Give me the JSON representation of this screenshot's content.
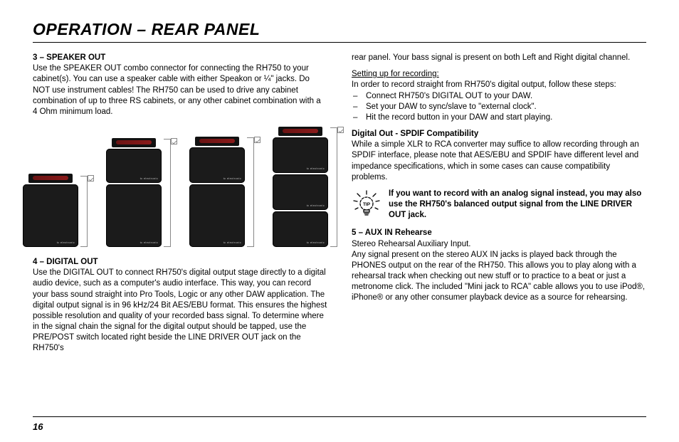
{
  "title": "OPERATION – REAR PANEL",
  "page_number": "16",
  "left": {
    "s3_head": "3 – SPEAKER OUT",
    "s3_body": "Use the SPEAKER OUT combo connector for connecting the RH750 to your cabinet(s). You can use a speaker cable with either Speakon or ¼\" jacks. Do NOT use instrument cables! The RH750 can be used to drive any cabinet combination of up to three RS cabinets, or any other cabinet combination with a 4 Ohm minimum load.",
    "s4_head": "4 – DIGITAL OUT",
    "s4_body": "Use the DIGITAL OUT to connect RH750's digital output stage directly to a digital audio device, such as a computer's audio interface. This way, you can record your bass sound straight into Pro Tools, Logic or any other DAW application. The digital output signal is in 96 kHz/24 Bit AES/EBU format. This ensures the highest possible resolution and quality of your recorded bass signal. To determine where in the signal chain the signal for the digital output should be tapped, use the PRE/POST switch located right beside the LINE DRIVER OUT jack on the RH750's",
    "diagram": {
      "brand": "tc electronic",
      "stacks": [
        {
          "amp": true,
          "cabs": [
            "sz2"
          ],
          "tick_h": 100
        },
        {
          "amp": true,
          "cabs": [
            "sz-top",
            "sz2"
          ],
          "tick_h": 152
        },
        {
          "amp": true,
          "cabs": [
            "sz1",
            "sz2"
          ],
          "tick_h": 154
        },
        {
          "amp": true,
          "cabs": [
            "sz1",
            "sz1",
            "sz1"
          ],
          "tick_h": 168
        }
      ]
    }
  },
  "right": {
    "cont": "rear panel. Your bass signal is present on both Left and Right digital channel.",
    "setup_head": "Setting up for recording:",
    "setup_intro": "In order to record straight from RH750's digital output, follow these steps:",
    "steps": [
      "Connect RH750's DIGITAL OUT to your DAW.",
      "Set your DAW to sync/slave to \"external clock\".",
      "Hit the record button in your DAW and start playing."
    ],
    "spdif_head": "Digital Out - SPDIF Compatibility",
    "spdif_body": "While a simple XLR to RCA converter may suffice to allow recording through an SPDIF interface, please note that AES/EBU and SPDIF have different level and impedance specifications, which in some cases can cause compatibility problems.",
    "tip_text": "If you want to record with an analog signal instead, you may also use the RH750's balanced output signal from the LINE DRIVER OUT jack.",
    "s5_head": "5 – AUX IN Rehearse",
    "s5_sub": "Stereo Rehearsal Auxiliary Input.",
    "s5_body": "Any signal present on the stereo AUX IN jacks is played back through the PHONES output on the rear of the RH750. This allows you to play along with a rehearsal track when checking out new stuff or to practice to a beat or just a metronome click. The included \"Mini jack to RCA\" cable allows you to use iPod®, iPhone® or any other consumer playback device as a source for rehearsing."
  },
  "colors": {
    "text": "#000000",
    "bg": "#ffffff",
    "rule": "#000000",
    "cab": "#1b1b1b",
    "amp_strip": "#7a1616",
    "tick": "#888888"
  }
}
